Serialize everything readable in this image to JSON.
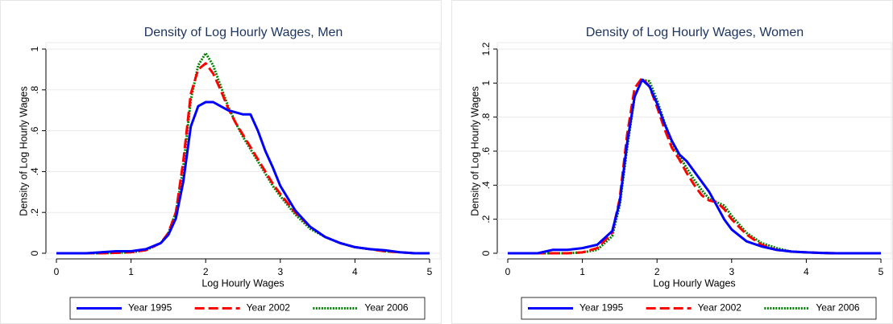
{
  "chart_data": [
    {
      "type": "line",
      "title": "Density of Log Hourly Wages, Men",
      "x_label": "Log Hourly Wages",
      "y_label": "Density of Log Hourly Wages",
      "x": [
        0,
        0.2,
        0.4,
        0.6,
        0.8,
        1.0,
        1.2,
        1.4,
        1.5,
        1.6,
        1.7,
        1.8,
        1.9,
        2.0,
        2.1,
        2.2,
        2.3,
        2.4,
        2.5,
        2.6,
        2.7,
        2.8,
        2.9,
        3.0,
        3.2,
        3.4,
        3.6,
        3.8,
        4.0,
        4.2,
        4.4,
        4.6,
        4.8,
        5.0
      ],
      "series": [
        {
          "name": "Year 1995",
          "color": "#0000ff",
          "line_style": "solid",
          "values": [
            0,
            0,
            0,
            0.005,
            0.01,
            0.01,
            0.02,
            0.05,
            0.09,
            0.17,
            0.35,
            0.62,
            0.72,
            0.74,
            0.74,
            0.72,
            0.7,
            0.69,
            0.68,
            0.68,
            0.6,
            0.5,
            0.42,
            0.33,
            0.21,
            0.13,
            0.08,
            0.05,
            0.03,
            0.02,
            0.015,
            0.005,
            0,
            0
          ]
        },
        {
          "name": "Year 2002",
          "color": "#ff0000",
          "line_style": "dashed",
          "values": [
            0,
            0,
            0,
            0,
            0.002,
            0.005,
            0.015,
            0.05,
            0.1,
            0.2,
            0.45,
            0.78,
            0.9,
            0.93,
            0.88,
            0.8,
            0.71,
            0.64,
            0.58,
            0.52,
            0.46,
            0.4,
            0.34,
            0.29,
            0.2,
            0.13,
            0.08,
            0.05,
            0.03,
            0.02,
            0.01,
            0.005,
            0,
            0
          ]
        },
        {
          "name": "Year 2006",
          "color": "#008000",
          "line_style": "dotted",
          "values": [
            0,
            0,
            0,
            0,
            0.002,
            0.005,
            0.015,
            0.05,
            0.1,
            0.2,
            0.42,
            0.75,
            0.92,
            0.98,
            0.92,
            0.82,
            0.72,
            0.64,
            0.57,
            0.51,
            0.45,
            0.39,
            0.33,
            0.28,
            0.19,
            0.12,
            0.08,
            0.05,
            0.03,
            0.02,
            0.01,
            0.005,
            0,
            0
          ]
        }
      ],
      "xlim": [
        0,
        5
      ],
      "xticks": [
        0,
        1,
        2,
        3,
        4,
        5
      ],
      "ylim": [
        0,
        1
      ],
      "yticks": [
        0,
        {
          "value": 0.2,
          "label": ".2"
        },
        {
          "value": 0.4,
          "label": ".4"
        },
        {
          "value": 0.6,
          "label": ".6"
        },
        {
          "value": 0.8,
          "label": ".8"
        },
        1
      ],
      "grid": true,
      "legend": "bottom"
    },
    {
      "type": "line",
      "title": "Density of Log Hourly Wages, Women",
      "x_label": "Log Hourly Wages",
      "y_label": "Density of Log Hourly Wages",
      "x": [
        0,
        0.2,
        0.4,
        0.6,
        0.8,
        1.0,
        1.2,
        1.4,
        1.5,
        1.6,
        1.7,
        1.8,
        1.9,
        2.0,
        2.1,
        2.2,
        2.3,
        2.4,
        2.5,
        2.6,
        2.7,
        2.8,
        2.9,
        3.0,
        3.2,
        3.4,
        3.6,
        3.8,
        4.0,
        4.2,
        4.4,
        4.6,
        4.8,
        5.0
      ],
      "series": [
        {
          "name": "Year 1995",
          "color": "#0000ff",
          "line_style": "solid",
          "values": [
            0,
            0,
            0,
            0.02,
            0.02,
            0.03,
            0.05,
            0.13,
            0.3,
            0.65,
            0.92,
            1.02,
            0.98,
            0.88,
            0.76,
            0.66,
            0.58,
            0.54,
            0.48,
            0.42,
            0.36,
            0.28,
            0.2,
            0.14,
            0.07,
            0.04,
            0.02,
            0.01,
            0.005,
            0.002,
            0,
            0,
            0,
            0
          ]
        },
        {
          "name": "Year 2002",
          "color": "#ff0000",
          "line_style": "dashed",
          "values": [
            0,
            0,
            0,
            0,
            0,
            0.005,
            0.03,
            0.12,
            0.32,
            0.7,
            0.97,
            1.03,
            0.98,
            0.86,
            0.73,
            0.62,
            0.55,
            0.47,
            0.4,
            0.34,
            0.31,
            0.3,
            0.26,
            0.2,
            0.11,
            0.05,
            0.02,
            0.01,
            0.005,
            0.002,
            0,
            0,
            0,
            0
          ]
        },
        {
          "name": "Year 2006",
          "color": "#008000",
          "line_style": "dotted",
          "values": [
            0,
            0,
            0,
            0,
            0,
            0.005,
            0.02,
            0.1,
            0.28,
            0.62,
            0.92,
            1.02,
            1.01,
            0.9,
            0.77,
            0.65,
            0.57,
            0.5,
            0.43,
            0.37,
            0.32,
            0.3,
            0.28,
            0.22,
            0.12,
            0.06,
            0.03,
            0.01,
            0.005,
            0.002,
            0,
            0,
            0,
            0
          ]
        }
      ],
      "xlim": [
        0,
        5
      ],
      "xticks": [
        0,
        1,
        2,
        3,
        4,
        5
      ],
      "ylim": [
        0,
        1.2
      ],
      "yticks": [
        0,
        {
          "value": 0.2,
          "label": ".2"
        },
        {
          "value": 0.4,
          "label": ".4"
        },
        {
          "value": 0.6,
          "label": ".6"
        },
        {
          "value": 0.8,
          "label": ".8"
        },
        1,
        {
          "value": 1.2,
          "label": "1.2"
        }
      ],
      "grid": true,
      "legend": "bottom"
    }
  ]
}
